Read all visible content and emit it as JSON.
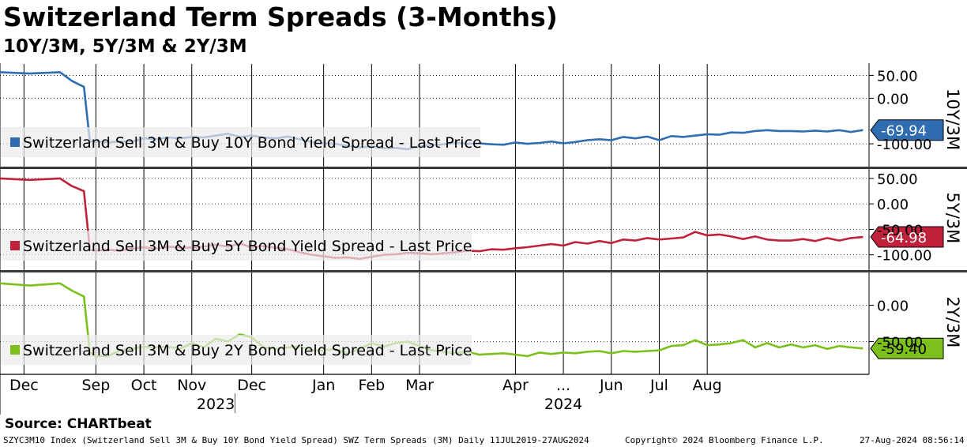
{
  "header": {
    "title": "Switzerland Term Spreads (3-Months)",
    "subtitle": "10Y/3M, 5Y/3M & 2Y/3M"
  },
  "chart_data": [
    {
      "type": "line",
      "panel_label": "10Y/3M",
      "legend": "Switzerland Sell 3M & Buy 10Y Bond Yield Spread - Last Price",
      "color": "#2f6db0",
      "last_value": -69.94,
      "last_value_label": "-69.94",
      "ylim": [
        -150,
        75
      ],
      "y_ticks": [
        50,
        0,
        -100
      ],
      "y_tick_labels": [
        "50.00",
        "0.00",
        "-100.00"
      ],
      "x": [
        0,
        5,
        10,
        12,
        14,
        15,
        16,
        18,
        20,
        22,
        24,
        26,
        28,
        30,
        32,
        34,
        36,
        38,
        40,
        42,
        44,
        46,
        48,
        50,
        52,
        54,
        56,
        58,
        60,
        62,
        64,
        66,
        68,
        70,
        72,
        74,
        76,
        78,
        80,
        82,
        84,
        86,
        88,
        90,
        92,
        94,
        96,
        98,
        100,
        102,
        104,
        106,
        108,
        110,
        112,
        114,
        116,
        118,
        120,
        122,
        124,
        126,
        128,
        130,
        132,
        134,
        136,
        138,
        140,
        142,
        144
      ],
      "values": [
        57,
        54,
        57,
        38,
        25,
        -95,
        -95,
        -97,
        -95,
        -95,
        -88,
        -90,
        -86,
        -88,
        -85,
        -86,
        -82,
        -78,
        -85,
        -82,
        -86,
        -88,
        -84,
        -90,
        -96,
        -99,
        -100,
        -105,
        -108,
        -106,
        -110,
        -109,
        -112,
        -105,
        -103,
        -101,
        -98,
        -100,
        -99,
        -101,
        -102,
        -97,
        -100,
        -98,
        -95,
        -99,
        -96,
        -92,
        -90,
        -92,
        -85,
        -88,
        -84,
        -92,
        -83,
        -85,
        -82,
        -79,
        -80,
        -75,
        -76,
        -72,
        -70,
        -72,
        -72,
        -73,
        -71,
        -73,
        -70,
        -74,
        -69.94
      ]
    },
    {
      "type": "line",
      "panel_label": "5Y/3M",
      "legend": "Switzerland Sell 3M & Buy 5Y Bond Yield Spread - Last Price",
      "color": "#c0223b",
      "last_value": -64.98,
      "last_value_label": "-64.98",
      "ylim": [
        -130,
        70
      ],
      "y_ticks": [
        50,
        0,
        -50,
        -100
      ],
      "y_tick_labels": [
        "50.00",
        "0.00",
        "-50.00",
        "-100.00"
      ],
      "x": [
        0,
        5,
        10,
        12,
        14,
        15,
        16,
        18,
        20,
        22,
        24,
        26,
        28,
        30,
        32,
        34,
        36,
        38,
        40,
        42,
        44,
        46,
        48,
        50,
        52,
        54,
        56,
        58,
        60,
        62,
        64,
        66,
        68,
        70,
        72,
        74,
        76,
        78,
        80,
        82,
        84,
        86,
        88,
        90,
        92,
        94,
        96,
        98,
        100,
        102,
        104,
        106,
        108,
        110,
        112,
        114,
        116,
        118,
        120,
        122,
        124,
        126,
        128,
        130,
        132,
        134,
        136,
        138,
        140,
        142,
        144
      ],
      "values": [
        50,
        47,
        50,
        35,
        25,
        -90,
        -92,
        -90,
        -92,
        -88,
        -85,
        -88,
        -84,
        -86,
        -86,
        -84,
        -80,
        -84,
        -78,
        -85,
        -83,
        -86,
        -89,
        -95,
        -100,
        -103,
        -106,
        -105,
        -108,
        -104,
        -100,
        -99,
        -96,
        -97,
        -99,
        -97,
        -95,
        -92,
        -93,
        -89,
        -90,
        -87,
        -85,
        -82,
        -79,
        -82,
        -75,
        -78,
        -73,
        -77,
        -70,
        -72,
        -67,
        -70,
        -68,
        -66,
        -55,
        -62,
        -60,
        -64,
        -69,
        -64,
        -70,
        -72,
        -72,
        -69,
        -73,
        -67,
        -72,
        -67,
        -64.98
      ]
    },
    {
      "type": "line",
      "panel_label": "2Y/3M",
      "legend": "Switzerland Sell 3M & Buy 2Y Bond Yield Spread - Last Price",
      "color": "#7cc01b",
      "last_value": -59.4,
      "last_value_label": "-59.40",
      "ylim": [
        -95,
        45
      ],
      "y_ticks": [
        0,
        -50
      ],
      "y_tick_labels": [
        "0.00",
        "-50.00"
      ],
      "x": [
        0,
        5,
        10,
        12,
        14,
        15,
        16,
        18,
        20,
        22,
        24,
        26,
        28,
        30,
        32,
        34,
        36,
        38,
        40,
        42,
        44,
        46,
        48,
        50,
        52,
        54,
        56,
        58,
        60,
        62,
        64,
        66,
        68,
        70,
        72,
        74,
        76,
        78,
        80,
        82,
        84,
        86,
        88,
        90,
        92,
        94,
        96,
        98,
        100,
        102,
        104,
        106,
        108,
        110,
        112,
        114,
        116,
        118,
        120,
        122,
        124,
        126,
        128,
        130,
        132,
        134,
        136,
        138,
        140,
        142,
        144
      ],
      "values": [
        30,
        27,
        30,
        20,
        12,
        -65,
        -70,
        -70,
        -62,
        -60,
        -57,
        -58,
        -57,
        -60,
        -52,
        -58,
        -46,
        -50,
        -40,
        -44,
        -58,
        -60,
        -58,
        -57,
        -62,
        -62,
        -60,
        -66,
        -60,
        -52,
        -57,
        -52,
        -50,
        -56,
        -62,
        -64,
        -66,
        -64,
        -68,
        -67,
        -66,
        -68,
        -70,
        -65,
        -67,
        -65,
        -66,
        -64,
        -63,
        -66,
        -63,
        -64,
        -63,
        -62,
        -56,
        -55,
        -48,
        -55,
        -54,
        -52,
        -48,
        -58,
        -52,
        -58,
        -54,
        -58,
        -55,
        -60,
        -56,
        -58,
        -59.4
      ]
    }
  ],
  "x_axis": {
    "months": [
      {
        "label": "Dec",
        "pos": 4
      },
      {
        "label": "Sep",
        "pos": 16
      },
      {
        "label": "Oct",
        "pos": 24
      },
      {
        "label": "Nov",
        "pos": 32
      },
      {
        "label": "Dec",
        "pos": 42
      },
      {
        "label": "Jan",
        "pos": 54
      },
      {
        "label": "Feb",
        "pos": 62
      },
      {
        "label": "Mar",
        "pos": 70
      },
      {
        "label": "Apr",
        "pos": 86
      },
      {
        "label": "...",
        "pos": 94
      },
      {
        "label": "Jun",
        "pos": 102
      },
      {
        "label": "Jul",
        "pos": 110
      },
      {
        "label": "Aug",
        "pos": 118
      }
    ],
    "years": [
      {
        "label": "2023",
        "pos": 36
      },
      {
        "label": "2024",
        "pos": 94
      }
    ],
    "year_divider_pos": 40
  },
  "source": "Source: CHARTbeat",
  "footer": {
    "left": "SZYC3M10 Index (Switzerland Sell 3M & Buy 10Y Bond Yield Spread) SWZ Term Spreads (3M)  Daily 11JUL2019-27AUG2024",
    "copyright": "Copyright© 2024 Bloomberg Finance L.P.",
    "timestamp": "27-Aug-2024 08:56:14"
  }
}
